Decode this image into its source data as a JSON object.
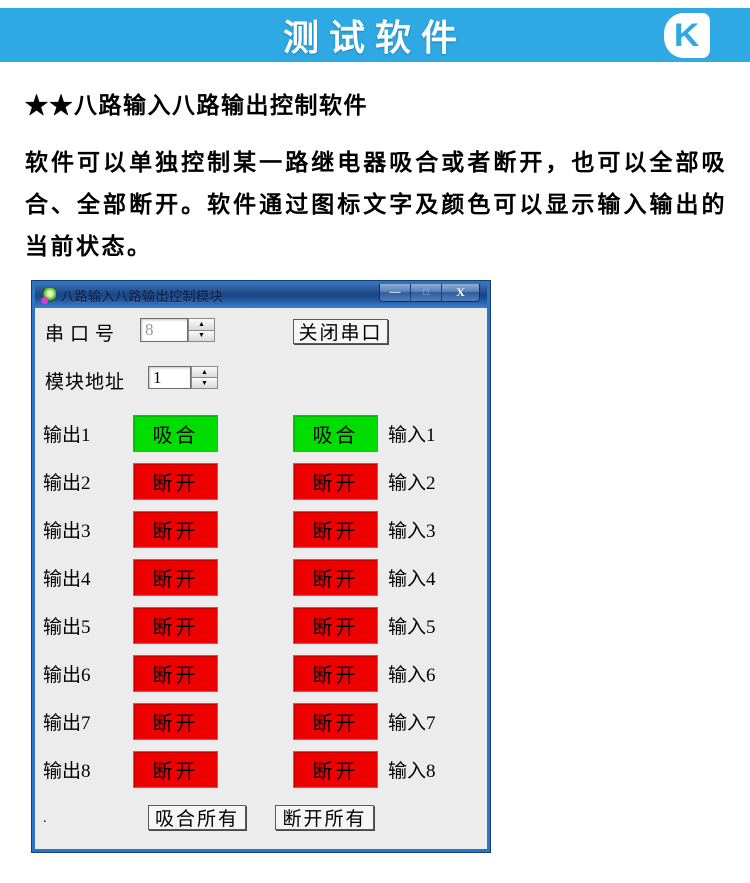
{
  "header": {
    "title": "测试软件",
    "logo_letter": "K",
    "bg_color": "#2FA9E3"
  },
  "intro": {
    "heading": "★★八路输入八路输出控制软件",
    "body": "软件可以单独控制某一路继电器吸合或者断开，也可以全部吸合、全部断开。软件通过图标文字及颜色可以显示输入输出的当前状态。"
  },
  "window": {
    "title": "八路输入八路输出控制模块",
    "caption_buttons": {
      "minimize": "—",
      "maximize": "□",
      "close": "X"
    },
    "serial": {
      "label": "串口号",
      "value": "8",
      "close_button": "关闭串口"
    },
    "address": {
      "label": "模块地址",
      "value": "1"
    },
    "icons": {
      "spinner_up": "▲",
      "spinner_down": "▼"
    },
    "status_colors": {
      "on": "#00DD00",
      "off": "#EE0000"
    },
    "channels": [
      {
        "output_label": "输出1",
        "output_state": "吸合",
        "output_on": "on",
        "input_state": "吸合",
        "input_on": "on",
        "input_label": "输入1"
      },
      {
        "output_label": "输出2",
        "output_state": "断开",
        "output_on": "off",
        "input_state": "断开",
        "input_on": "off",
        "input_label": "输入2"
      },
      {
        "output_label": "输出3",
        "output_state": "断开",
        "output_on": "off",
        "input_state": "断开",
        "input_on": "off",
        "input_label": "输入3"
      },
      {
        "output_label": "输出4",
        "output_state": "断开",
        "output_on": "off",
        "input_state": "断开",
        "input_on": "off",
        "input_label": "输入4"
      },
      {
        "output_label": "输出5",
        "output_state": "断开",
        "output_on": "off",
        "input_state": "断开",
        "input_on": "off",
        "input_label": "输入5"
      },
      {
        "output_label": "输出6",
        "output_state": "断开",
        "output_on": "off",
        "input_state": "断开",
        "input_on": "off",
        "input_label": "输入6"
      },
      {
        "output_label": "输出7",
        "output_state": "断开",
        "output_on": "off",
        "input_state": "断开",
        "input_on": "off",
        "input_label": "输入7"
      },
      {
        "output_label": "输出8",
        "output_state": "断开",
        "output_on": "off",
        "input_state": "断开",
        "input_on": "off",
        "input_label": "输入8"
      }
    ],
    "footer": {
      "all_on": "吸合所有",
      "all_off": "断开所有",
      "dot": "."
    }
  }
}
